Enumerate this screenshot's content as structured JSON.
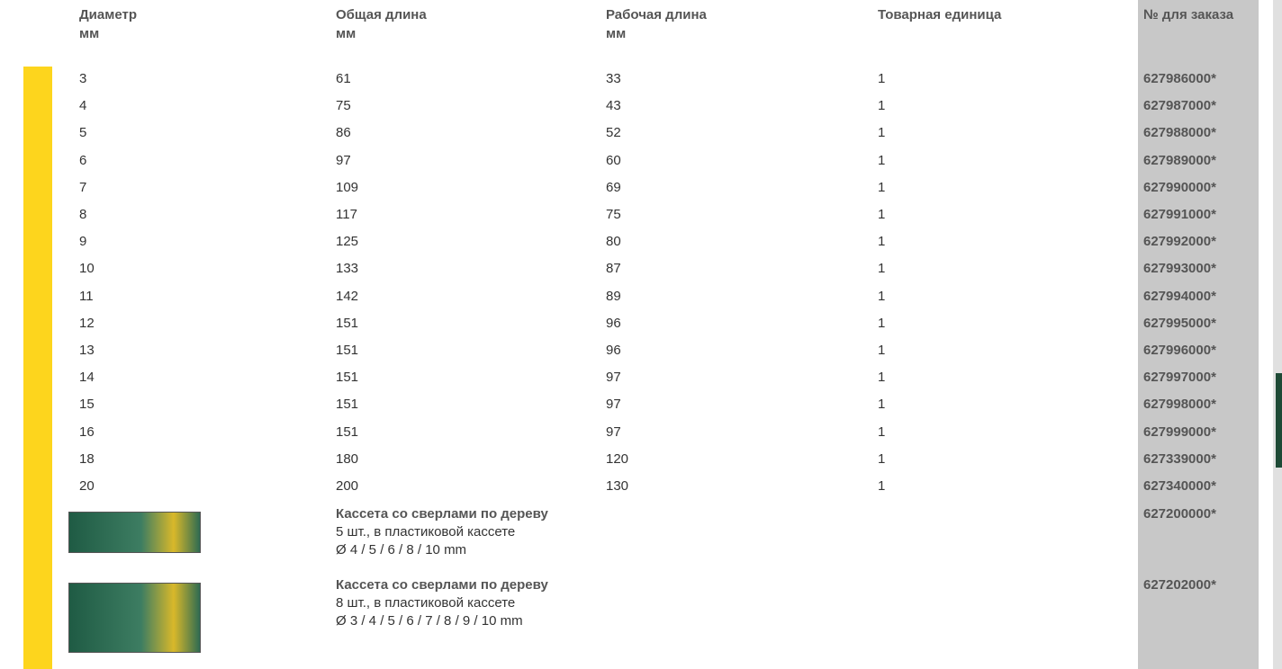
{
  "header": {
    "columns": [
      {
        "title": "Диаметр",
        "unit": "мм"
      },
      {
        "title": "Общая длина",
        "unit": "мм"
      },
      {
        "title": "Рабочая длина",
        "unit": "мм"
      },
      {
        "title": "Товарная единица"
      },
      {
        "title": "№ для заказа"
      }
    ]
  },
  "table": {
    "rows": [
      [
        3,
        61,
        33,
        1,
        "627986000*"
      ],
      [
        4,
        75,
        43,
        1,
        "627987000*"
      ],
      [
        5,
        86,
        52,
        1,
        "627988000*"
      ],
      [
        6,
        97,
        60,
        1,
        "627989000*"
      ],
      [
        7,
        109,
        69,
        1,
        "627990000*"
      ],
      [
        8,
        117,
        75,
        1,
        "627991000*"
      ],
      [
        9,
        125,
        80,
        1,
        "627992000*"
      ],
      [
        10,
        133,
        87,
        1,
        "627993000*"
      ],
      [
        11,
        142,
        89,
        1,
        "627994000*"
      ],
      [
        12,
        151,
        96,
        1,
        "627995000*"
      ],
      [
        13,
        151,
        96,
        1,
        "627996000*"
      ],
      [
        14,
        151,
        97,
        1,
        "627997000*"
      ],
      [
        15,
        151,
        97,
        1,
        "627998000*"
      ],
      [
        16,
        151,
        97,
        1,
        "627999000*"
      ],
      [
        18,
        180,
        120,
        1,
        "627339000*"
      ],
      [
        20,
        200,
        130,
        1,
        "627340000*"
      ]
    ]
  },
  "kits": [
    {
      "title": "Кассета со сверлами по дереву",
      "lines": [
        "5 шт., в пластиковой кассете",
        "Ø 4 / 5 / 6 / 8 / 10 mm"
      ],
      "order": "627200000*"
    },
    {
      "title": "Кассета со сверлами по дереву",
      "lines": [
        "8 шт., в пластиковой кассете",
        "Ø 3 / 4 / 5 / 6 / 7 / 8 / 9 / 10 mm"
      ],
      "order": "627202000*"
    }
  ]
}
